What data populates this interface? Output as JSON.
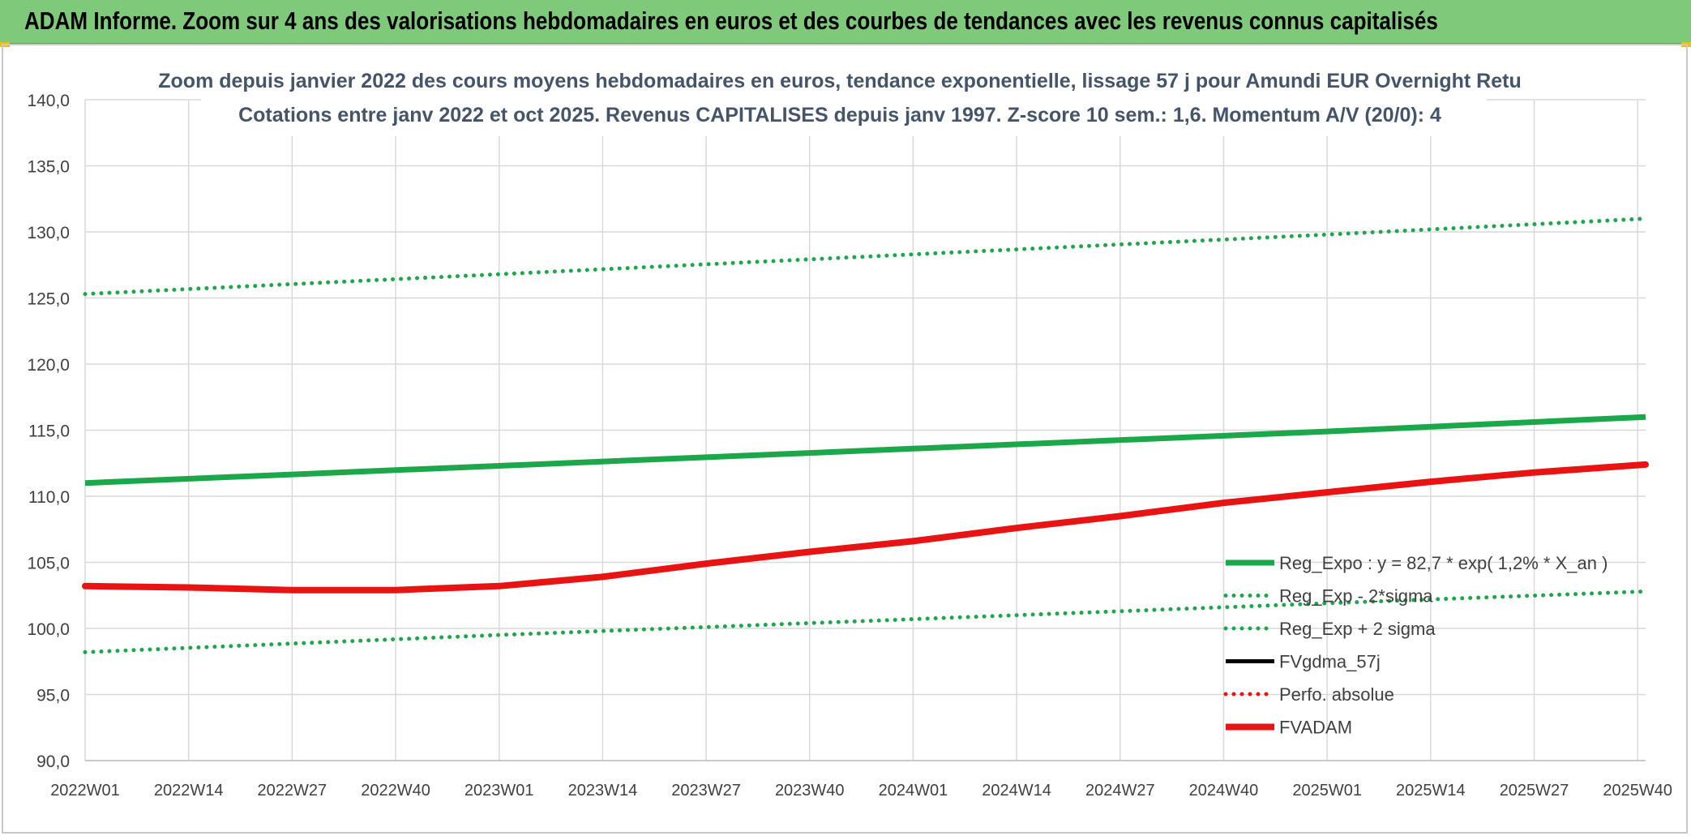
{
  "banner": {
    "title": "ADAM Informe. Zoom sur 4 ans des valorisations hebdomadaires en euros et des courbes de tendances avec les revenus connus capitalisés"
  },
  "colors": {
    "banner_bg": "#7fc97a",
    "green": "#1aa84a",
    "red": "#e81414",
    "black": "#000000",
    "grid": "#d9d9d9",
    "text": "#404040",
    "title_text": "#44546a"
  },
  "chart_data": {
    "type": "line",
    "title_line1": "Zoom depuis janvier 2022 des cours moyens hebdomadaires en euros, tendance exponentielle, lissage 57 j pour Amundi EUR Overnight Retu",
    "title_line2": "Cotations entre janv 2022 et oct 2025. Revenus CAPITALISES depuis janv 1997. Z-score 10 sem.: 1,6. Momentum A/V (20/0): 4",
    "ylim": [
      90,
      140
    ],
    "yticks": [
      "140,0",
      "135,0",
      "130,0",
      "125,0",
      "120,0",
      "115,0",
      "110,0",
      "105,0",
      "100,0",
      "95,0",
      "90,0"
    ],
    "xticks": [
      "2022W01",
      "2022W14",
      "2022W27",
      "2022W40",
      "2023W01",
      "2023W14",
      "2023W27",
      "2023W40",
      "2024W01",
      "2024W14",
      "2024W27",
      "2024W40",
      "2025W01",
      "2025W14",
      "2025W27",
      "2025W40"
    ],
    "grid": true,
    "legend_position": "bottom-right",
    "series": [
      {
        "name": "Reg_Expo : y = 82,7 * exp( 1,2% *  X_an )",
        "style": "solid",
        "color": "#1aa84a",
        "x": [
          0,
          52,
          104,
          156,
          196
        ],
        "y": [
          111.0,
          112.3,
          113.6,
          114.9,
          116.0
        ]
      },
      {
        "name": "Reg_Exp - 2*sigma",
        "style": "dotted",
        "color": "#1aa84a",
        "x": [
          0,
          52,
          104,
          156,
          196
        ],
        "y": [
          98.2,
          99.5,
          100.7,
          101.9,
          102.8
        ]
      },
      {
        "name": "Reg_Exp + 2 sigma",
        "style": "dotted",
        "color": "#1aa84a",
        "x": [
          0,
          52,
          104,
          156,
          196
        ],
        "y": [
          125.3,
          126.8,
          128.3,
          129.8,
          131.0
        ]
      },
      {
        "name": "FVgdma_57j",
        "style": "solid",
        "color": "#000000",
        "x": [
          0,
          13,
          26,
          39,
          52,
          65,
          78,
          91,
          104,
          117,
          130,
          143,
          156,
          169,
          182,
          196
        ],
        "y": [
          103.2,
          103.1,
          102.9,
          102.9,
          103.2,
          103.9,
          104.9,
          105.8,
          106.6,
          107.6,
          108.5,
          109.5,
          110.3,
          111.1,
          111.8,
          112.4
        ]
      },
      {
        "name": "Perfo. absolue",
        "style": "dotted",
        "color": "#e81414",
        "x": [],
        "y": []
      },
      {
        "name": "FVADAM",
        "style": "solid",
        "color": "#e81414",
        "x": [
          0,
          13,
          26,
          39,
          52,
          65,
          78,
          91,
          104,
          117,
          130,
          143,
          156,
          169,
          182,
          196
        ],
        "y": [
          103.2,
          103.1,
          102.9,
          102.9,
          103.2,
          103.9,
          104.9,
          105.8,
          106.6,
          107.6,
          108.5,
          109.5,
          110.3,
          111.1,
          111.8,
          112.4
        ]
      }
    ]
  }
}
